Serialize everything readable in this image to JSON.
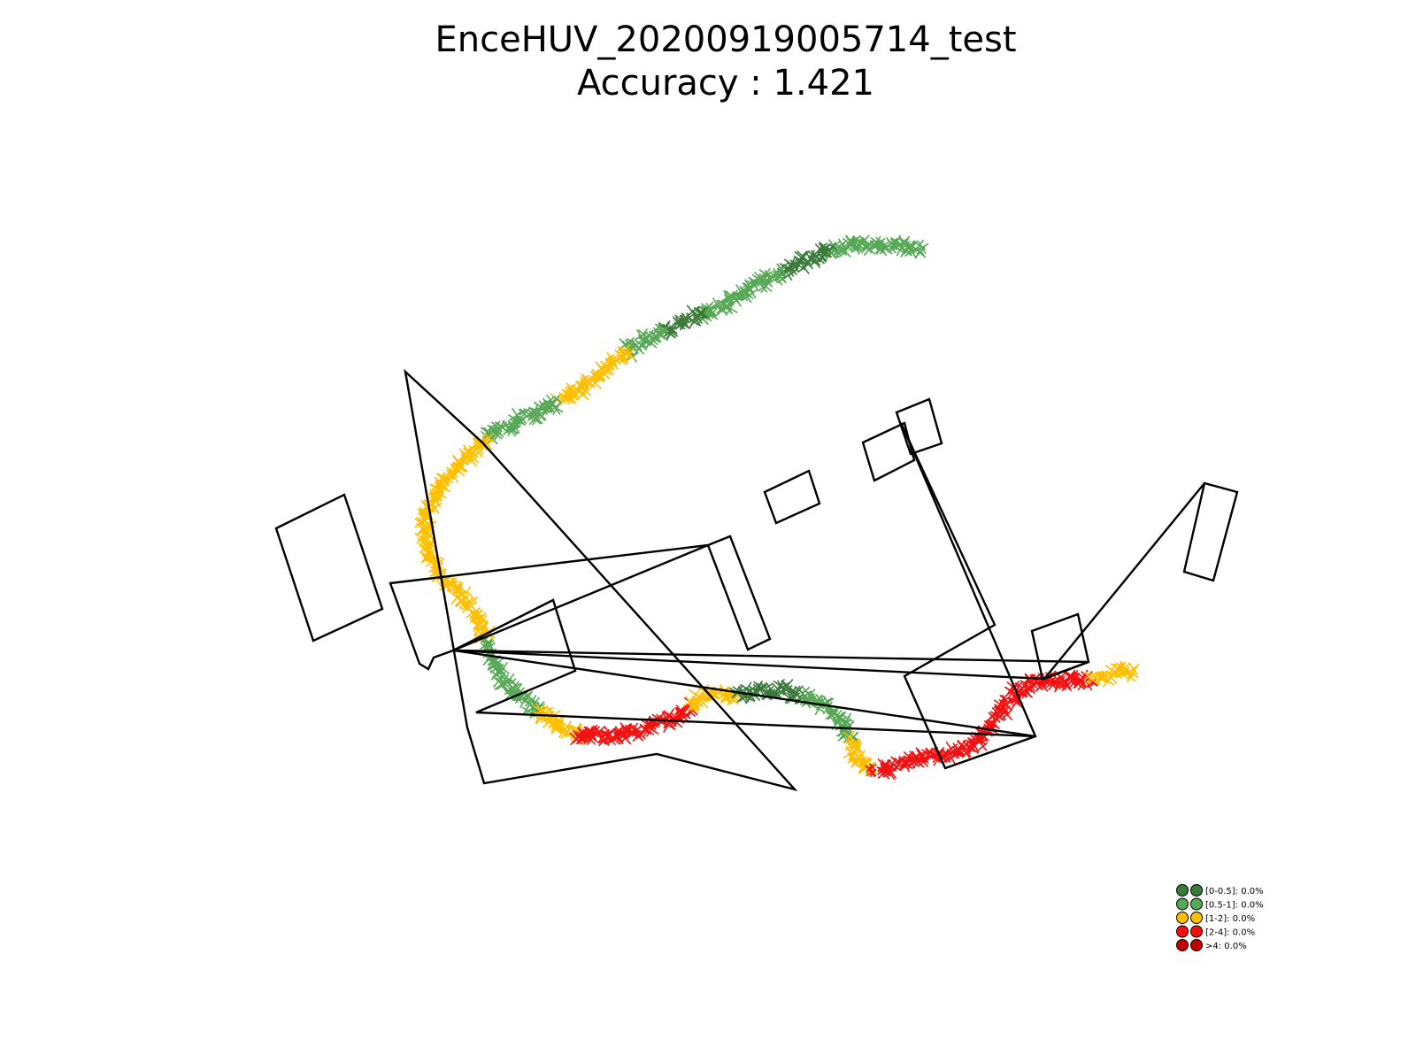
{
  "chart_data": {
    "type": "scatter",
    "title": "EnceHUV_20200919005714_test",
    "subtitle": "Accuracy : 1.421",
    "axes": "off",
    "grid": false,
    "legend_position": "bottom-right",
    "legend": [
      {
        "label": "[0-0.5]: 0.0%",
        "color": "#3a7a3a"
      },
      {
        "label": "[0.5-1]: 0.0%",
        "color": "#57a857"
      },
      {
        "label": "[1-2]: 0.0%",
        "color": "#ffbf00"
      },
      {
        "label": "[2-4]: 0.0%",
        "color": "#f21010"
      },
      {
        "label": ">4: 0.0%",
        "color": "#c40000"
      }
    ],
    "trajectory_segments": [
      {
        "category": "[0.5-1]",
        "color": "#57a857",
        "points": [
          [
            1040,
            282
          ],
          [
            1010,
            276
          ],
          [
            985,
            278
          ],
          [
            960,
            276
          ],
          [
            938,
            282
          ]
        ]
      },
      {
        "category": "[0-0.5]",
        "color": "#3a7a3a",
        "points": [
          [
            938,
            282
          ],
          [
            920,
            290
          ],
          [
            900,
            300
          ],
          [
            882,
            310
          ]
        ]
      },
      {
        "category": "[0.5-1]",
        "color": "#57a857",
        "points": [
          [
            882,
            310
          ],
          [
            860,
            320
          ],
          [
            838,
            333
          ],
          [
            815,
            345
          ],
          [
            790,
            356
          ]
        ]
      },
      {
        "category": "[0-0.5]",
        "color": "#3a7a3a",
        "points": [
          [
            790,
            356
          ],
          [
            770,
            366
          ],
          [
            750,
            375
          ]
        ]
      },
      {
        "category": "[0.5-1]",
        "color": "#57a857",
        "points": [
          [
            750,
            375
          ],
          [
            728,
            384
          ],
          [
            708,
            398
          ]
        ]
      },
      {
        "category": "[1-2]",
        "color": "#ffbf00",
        "points": [
          [
            708,
            398
          ],
          [
            690,
            412
          ],
          [
            672,
            428
          ],
          [
            650,
            442
          ],
          [
            630,
            455
          ]
        ]
      },
      {
        "category": "[0.5-1]",
        "color": "#57a857",
        "points": [
          [
            630,
            455
          ],
          [
            608,
            466
          ],
          [
            585,
            476
          ],
          [
            562,
            486
          ],
          [
            548,
            496
          ]
        ]
      },
      {
        "category": "[1-2]",
        "color": "#ffbf00",
        "points": [
          [
            548,
            496
          ],
          [
            532,
            512
          ],
          [
            515,
            530
          ],
          [
            500,
            548
          ],
          [
            488,
            566
          ],
          [
            480,
            586
          ],
          [
            480,
            608
          ],
          [
            486,
            630
          ],
          [
            500,
            650
          ],
          [
            515,
            665
          ],
          [
            528,
            680
          ],
          [
            540,
            700
          ],
          [
            548,
            722
          ]
        ]
      },
      {
        "category": "[0.5-1]",
        "color": "#57a857",
        "points": [
          [
            548,
            722
          ],
          [
            558,
            745
          ],
          [
            570,
            770
          ],
          [
            590,
            790
          ],
          [
            612,
            805
          ]
        ]
      },
      {
        "category": "[1-2]",
        "color": "#ffbf00",
        "points": [
          [
            612,
            805
          ],
          [
            632,
            818
          ],
          [
            652,
            830
          ]
        ]
      },
      {
        "category": "[2-4]",
        "color": "#f21010",
        "points": [
          [
            652,
            830
          ],
          [
            680,
            832
          ],
          [
            710,
            828
          ],
          [
            740,
            818
          ],
          [
            768,
            808
          ],
          [
            780,
            798
          ]
        ]
      },
      {
        "category": "[1-2]",
        "color": "#ffbf00",
        "points": [
          [
            780,
            798
          ],
          [
            795,
            788
          ],
          [
            815,
            782
          ],
          [
            835,
            786
          ]
        ]
      },
      {
        "category": "[0-0.5]",
        "color": "#3a7a3a",
        "points": [
          [
            835,
            786
          ],
          [
            860,
            780
          ],
          [
            885,
            780
          ],
          [
            910,
            786
          ]
        ]
      },
      {
        "category": "[0.5-1]",
        "color": "#57a857",
        "points": [
          [
            910,
            786
          ],
          [
            935,
            798
          ],
          [
            955,
            815
          ],
          [
            962,
            838
          ]
        ]
      },
      {
        "category": "[1-2]",
        "color": "#ffbf00",
        "points": [
          [
            962,
            838
          ],
          [
            968,
            858
          ],
          [
            985,
            872
          ]
        ]
      },
      {
        "category": "[2-4]",
        "color": "#f21010",
        "points": [
          [
            985,
            872
          ],
          [
            1010,
            866
          ],
          [
            1040,
            858
          ],
          [
            1070,
            852
          ],
          [
            1100,
            844
          ],
          [
            1120,
            820
          ],
          [
            1135,
            800
          ],
          [
            1150,
            782
          ],
          [
            1168,
            770
          ],
          [
            1190,
            768
          ],
          [
            1212,
            770
          ],
          [
            1235,
            768
          ]
        ]
      },
      {
        "category": "[1-2]",
        "color": "#ffbf00",
        "points": [
          [
            1235,
            768
          ],
          [
            1250,
            762
          ],
          [
            1268,
            758
          ],
          [
            1280,
            762
          ]
        ]
      }
    ]
  }
}
